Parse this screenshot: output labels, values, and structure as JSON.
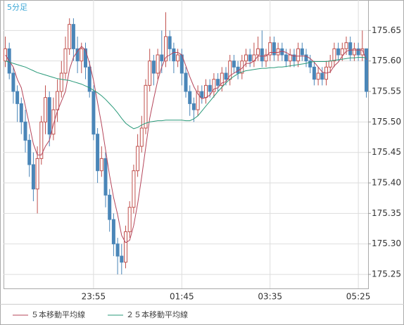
{
  "chart_data": {
    "type": "candlestick",
    "title": "5分足",
    "categories": [
      null,
      null,
      null,
      null,
      null,
      null,
      null,
      null,
      null,
      null,
      null,
      null,
      null,
      null,
      null,
      null,
      null,
      null,
      null,
      null,
      null,
      null,
      "23:55",
      null,
      null,
      null,
      null,
      null,
      null,
      null,
      null,
      null,
      null,
      null,
      null,
      null,
      null,
      null,
      null,
      null,
      null,
      null,
      null,
      null,
      "01:45",
      null,
      null,
      null,
      null,
      null,
      null,
      null,
      null,
      null,
      null,
      null,
      null,
      null,
      null,
      null,
      null,
      null,
      null,
      null,
      null,
      null,
      "03:35",
      null,
      null,
      null,
      null,
      null,
      null,
      null,
      null,
      null,
      null,
      null,
      null,
      null,
      null,
      null,
      null,
      null,
      null,
      null,
      null,
      null,
      "05:25",
      null,
      null
    ],
    "candles": [
      [
        175.6,
        175.64,
        175.59,
        175.62
      ],
      [
        175.62,
        175.63,
        175.57,
        175.58
      ],
      [
        175.58,
        175.59,
        175.53,
        175.55
      ],
      [
        175.55,
        175.56,
        175.5,
        175.53
      ],
      [
        175.53,
        175.54,
        175.48,
        175.5
      ],
      [
        175.5,
        175.52,
        175.45,
        175.47
      ],
      [
        175.47,
        175.48,
        175.41,
        175.43
      ],
      [
        175.43,
        175.45,
        175.37,
        175.39
      ],
      [
        175.39,
        175.46,
        175.35,
        175.44
      ],
      [
        175.44,
        175.51,
        175.43,
        175.5
      ],
      [
        175.5,
        175.56,
        175.48,
        175.54
      ],
      [
        175.54,
        175.55,
        175.46,
        175.48
      ],
      [
        175.48,
        175.54,
        175.47,
        175.52
      ],
      [
        175.52,
        175.57,
        175.5,
        175.55
      ],
      [
        175.55,
        175.6,
        175.54,
        175.58
      ],
      [
        175.58,
        175.64,
        175.57,
        175.62
      ],
      [
        175.62,
        175.67,
        175.61,
        175.66
      ],
      [
        175.66,
        175.67,
        175.6,
        175.62
      ],
      [
        175.62,
        175.64,
        175.58,
        175.6
      ],
      [
        175.6,
        175.63,
        175.58,
        175.62
      ],
      [
        175.62,
        175.63,
        175.57,
        175.59
      ],
      [
        175.59,
        175.6,
        175.54,
        175.55
      ],
      [
        175.55,
        175.56,
        175.47,
        175.48
      ],
      [
        175.48,
        175.49,
        175.4,
        175.42
      ],
      [
        175.42,
        175.46,
        175.41,
        175.44
      ],
      [
        175.44,
        175.45,
        175.36,
        175.38
      ],
      [
        175.38,
        175.39,
        175.32,
        175.34
      ],
      [
        175.34,
        175.35,
        175.28,
        175.3
      ],
      [
        175.3,
        175.31,
        175.25,
        175.28
      ],
      [
        175.28,
        175.3,
        175.25,
        175.27
      ],
      [
        175.27,
        175.33,
        175.26,
        175.32
      ],
      [
        175.32,
        175.37,
        175.31,
        175.36
      ],
      [
        175.36,
        175.43,
        175.35,
        175.42
      ],
      [
        175.42,
        175.48,
        175.41,
        175.46
      ],
      [
        175.46,
        175.51,
        175.45,
        175.49
      ],
      [
        175.49,
        175.57,
        175.48,
        175.56
      ],
      [
        175.56,
        175.62,
        175.55,
        175.6
      ],
      [
        175.6,
        175.61,
        175.56,
        175.58
      ],
      [
        175.58,
        175.62,
        175.57,
        175.61
      ],
      [
        175.61,
        175.65,
        175.58,
        175.6
      ],
      [
        175.6,
        175.68,
        175.59,
        175.64
      ],
      [
        175.64,
        175.65,
        175.6,
        175.62
      ],
      [
        175.62,
        175.63,
        175.58,
        175.6
      ],
      [
        175.6,
        175.62,
        175.59,
        175.61
      ],
      [
        175.61,
        175.62,
        175.56,
        175.58
      ],
      [
        175.58,
        175.59,
        175.54,
        175.55
      ],
      [
        175.55,
        175.56,
        175.51,
        175.53
      ],
      [
        175.53,
        175.54,
        175.5,
        175.52
      ],
      [
        175.52,
        175.56,
        175.51,
        175.55
      ],
      [
        175.55,
        175.56,
        175.53,
        175.54
      ],
      [
        175.54,
        175.57,
        175.53,
        175.56
      ],
      [
        175.56,
        175.57,
        175.54,
        175.55
      ],
      [
        175.55,
        175.58,
        175.54,
        175.57
      ],
      [
        175.57,
        175.58,
        175.55,
        175.56
      ],
      [
        175.56,
        175.59,
        175.55,
        175.58
      ],
      [
        175.58,
        175.59,
        175.56,
        175.57
      ],
      [
        175.57,
        175.61,
        175.56,
        175.6
      ],
      [
        175.6,
        175.61,
        175.58,
        175.59
      ],
      [
        175.59,
        175.6,
        175.57,
        175.58
      ],
      [
        175.58,
        175.61,
        175.57,
        175.6
      ],
      [
        175.6,
        175.62,
        175.59,
        175.61
      ],
      [
        175.61,
        175.62,
        175.59,
        175.6
      ],
      [
        175.6,
        175.63,
        175.59,
        175.61
      ],
      [
        175.61,
        175.64,
        175.6,
        175.62
      ],
      [
        175.62,
        175.65,
        175.59,
        175.6
      ],
      [
        175.6,
        175.62,
        175.59,
        175.61
      ],
      [
        175.61,
        175.64,
        175.6,
        175.63
      ],
      [
        175.63,
        175.64,
        175.6,
        175.61
      ],
      [
        175.61,
        175.63,
        175.6,
        175.62
      ],
      [
        175.62,
        175.63,
        175.6,
        175.61
      ],
      [
        175.61,
        175.62,
        175.59,
        175.6
      ],
      [
        175.6,
        175.62,
        175.59,
        175.61
      ],
      [
        175.61,
        175.62,
        175.59,
        175.6
      ],
      [
        175.6,
        175.63,
        175.59,
        175.62
      ],
      [
        175.62,
        175.63,
        175.6,
        175.61
      ],
      [
        175.61,
        175.62,
        175.59,
        175.6
      ],
      [
        175.6,
        175.61,
        175.58,
        175.59
      ],
      [
        175.59,
        175.6,
        175.56,
        175.57
      ],
      [
        175.57,
        175.59,
        175.56,
        175.58
      ],
      [
        175.58,
        175.59,
        175.56,
        175.57
      ],
      [
        175.57,
        175.6,
        175.56,
        175.59
      ],
      [
        175.59,
        175.61,
        175.58,
        175.6
      ],
      [
        175.6,
        175.63,
        175.59,
        175.62
      ],
      [
        175.62,
        175.63,
        175.6,
        175.61
      ],
      [
        175.61,
        175.63,
        175.6,
        175.62
      ],
      [
        175.62,
        175.64,
        175.61,
        175.63
      ],
      [
        175.63,
        175.64,
        175.6,
        175.61
      ],
      [
        175.61,
        175.63,
        175.6,
        175.62
      ],
      [
        175.62,
        175.63,
        175.6,
        175.61
      ],
      [
        175.61,
        175.65,
        175.6,
        175.62
      ],
      [
        175.62,
        175.62,
        175.54,
        175.55
      ]
    ],
    "up_color": "#c0504d",
    "down_color": "#4a86b8",
    "series": [
      {
        "name": "５本移動平均線",
        "color": "#b5455a",
        "values": [
          175.61,
          175.6,
          175.59,
          175.57,
          175.556,
          175.526,
          175.496,
          175.464,
          175.446,
          175.446,
          175.46,
          175.47,
          175.496,
          175.518,
          175.534,
          175.55,
          175.586,
          175.606,
          175.616,
          175.624,
          175.618,
          175.596,
          175.568,
          175.532,
          175.496,
          175.454,
          175.412,
          175.376,
          175.348,
          175.314,
          175.302,
          175.306,
          175.33,
          175.366,
          175.41,
          175.458,
          175.506,
          175.538,
          175.568,
          175.59,
          175.606,
          175.61,
          175.614,
          175.614,
          175.61,
          175.592,
          175.574,
          175.558,
          175.546,
          175.538,
          175.54,
          175.544,
          175.554,
          175.556,
          175.564,
          175.566,
          175.576,
          175.58,
          175.584,
          175.588,
          175.596,
          175.596,
          175.6,
          175.608,
          175.608,
          175.608,
          175.614,
          175.614,
          175.614,
          175.616,
          175.614,
          175.61,
          175.608,
          175.608,
          175.608,
          175.608,
          175.604,
          175.598,
          175.59,
          175.582,
          175.58,
          175.582,
          175.592,
          175.598,
          175.608,
          175.616,
          175.618,
          175.618,
          175.618,
          175.618,
          175.602
        ]
      },
      {
        "name": "２５本移動平均線",
        "color": "#2a9a7a",
        "values": [
          175.6,
          175.598,
          175.596,
          175.594,
          175.592,
          175.59,
          175.587,
          175.584,
          175.581,
          175.579,
          175.577,
          175.575,
          175.573,
          175.571,
          175.57,
          175.569,
          175.568,
          175.566,
          175.564,
          175.562,
          175.559,
          175.556,
          175.552,
          175.548,
          175.543,
          175.537,
          175.53,
          175.523,
          175.515,
          175.506,
          175.498,
          175.493,
          175.489,
          175.491,
          175.495,
          175.498,
          175.5,
          175.501,
          175.502,
          175.502,
          175.503,
          175.503,
          175.503,
          175.503,
          175.503,
          175.502,
          175.502,
          175.505,
          175.51,
          175.518,
          175.526,
          175.534,
          175.542,
          175.55,
          175.557,
          175.564,
          175.57,
          175.575,
          175.579,
          175.582,
          175.584,
          175.585,
          175.586,
          175.587,
          175.588,
          175.588,
          175.589,
          175.589,
          175.59,
          175.59,
          175.591,
          175.592,
          175.593,
          175.594,
          175.595,
          175.596,
          175.598,
          175.599,
          175.599,
          175.599,
          175.599,
          175.6,
          175.601,
          175.602,
          175.603,
          175.604,
          175.605,
          175.605,
          175.606,
          175.606,
          175.605
        ]
      }
    ],
    "ylim": [
      175.227,
      175.7
    ],
    "yticks": [
      175.25,
      {
        "value": 175.3,
        "label": "175.30"
      },
      175.35,
      {
        "value": 175.4,
        "label": "175.40"
      },
      175.45,
      {
        "value": 175.5,
        "label": "175.50"
      },
      175.55,
      {
        "value": 175.6,
        "label": "175.60"
      },
      175.65
    ],
    "grid": true
  }
}
